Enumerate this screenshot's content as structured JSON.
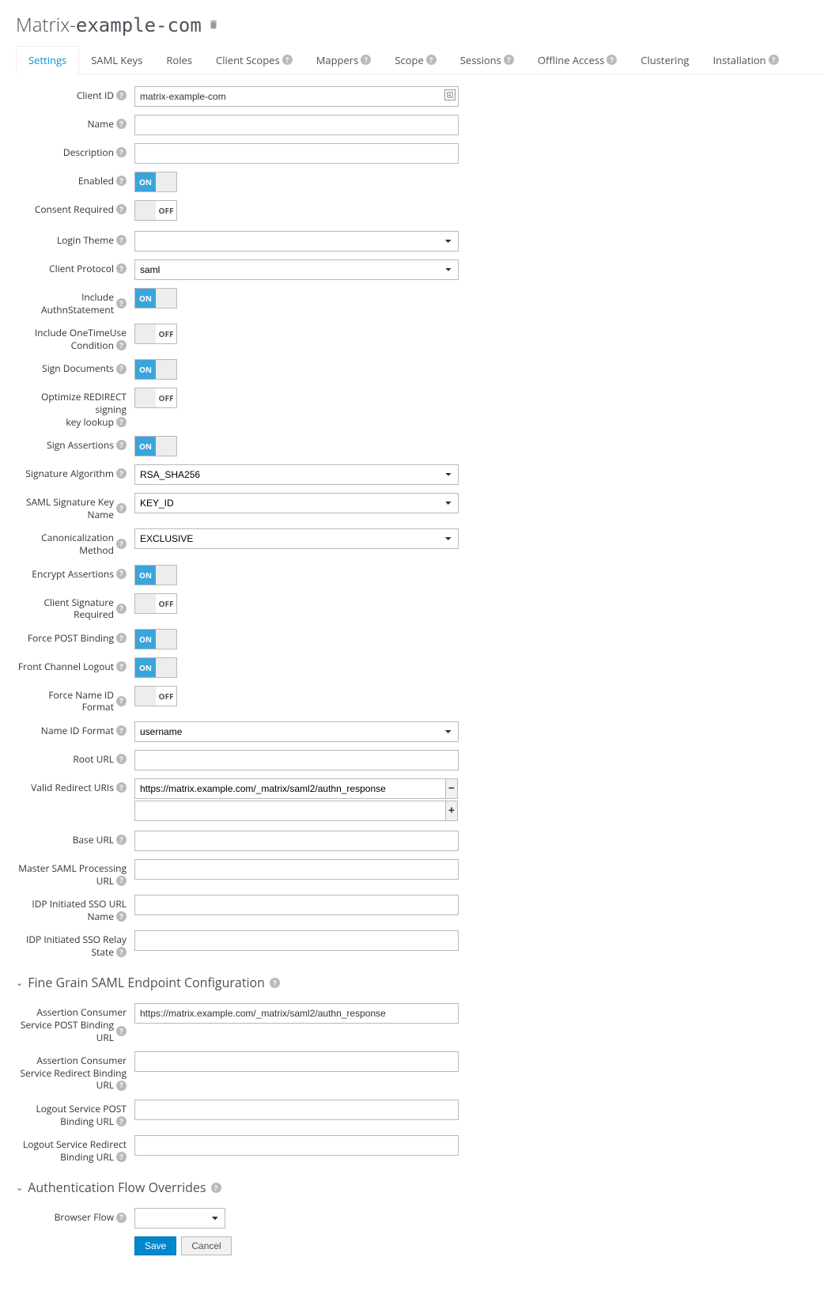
{
  "title": {
    "prefix": "Matrix-",
    "name": "example-com"
  },
  "tabs": [
    {
      "label": "Settings",
      "help": false,
      "active": true
    },
    {
      "label": "SAML Keys",
      "help": false
    },
    {
      "label": "Roles",
      "help": false
    },
    {
      "label": "Client Scopes",
      "help": true
    },
    {
      "label": "Mappers",
      "help": true
    },
    {
      "label": "Scope",
      "help": true
    },
    {
      "label": "Sessions",
      "help": true
    },
    {
      "label": "Offline Access",
      "help": true
    },
    {
      "label": "Clustering",
      "help": false
    },
    {
      "label": "Installation",
      "help": true
    }
  ],
  "fields": {
    "client_id": {
      "label": "Client ID",
      "value": "matrix-example-com"
    },
    "name": {
      "label": "Name",
      "value": ""
    },
    "description": {
      "label": "Description",
      "value": ""
    },
    "enabled": {
      "label": "Enabled",
      "on": true
    },
    "consent_required": {
      "label": "Consent Required",
      "on": false
    },
    "login_theme": {
      "label": "Login Theme",
      "value": ""
    },
    "client_protocol": {
      "label": "Client Protocol",
      "value": "saml"
    },
    "include_authn": {
      "label": "Include AuthnStatement",
      "on": true
    },
    "include_onetime": {
      "label": "Include OneTimeUse Condition",
      "on": false
    },
    "sign_documents": {
      "label": "Sign Documents",
      "on": true
    },
    "optimize_redirect": {
      "label": "Optimize REDIRECT signing key lookup",
      "on": false
    },
    "sign_assertions": {
      "label": "Sign Assertions",
      "on": true
    },
    "signature_algorithm": {
      "label": "Signature Algorithm",
      "value": "RSA_SHA256"
    },
    "saml_sig_key_name": {
      "label": "SAML Signature Key Name",
      "value": "KEY_ID"
    },
    "canon_method": {
      "label": "Canonicalization Method",
      "value": "EXCLUSIVE"
    },
    "encrypt_assertions": {
      "label": "Encrypt Assertions",
      "on": true
    },
    "client_sig_required": {
      "label": "Client Signature Required",
      "on": false
    },
    "force_post_binding": {
      "label": "Force POST Binding",
      "on": true
    },
    "front_channel_logout": {
      "label": "Front Channel Logout",
      "on": true
    },
    "force_name_id": {
      "label": "Force Name ID Format",
      "on": false
    },
    "name_id_format": {
      "label": "Name ID Format",
      "value": "username"
    },
    "root_url": {
      "label": "Root URL",
      "value": ""
    },
    "valid_redirect": {
      "label": "Valid Redirect URIs",
      "value": "https://matrix.example.com/_matrix/saml2/authn_response"
    },
    "base_url": {
      "label": "Base URL",
      "value": ""
    },
    "master_saml_url": {
      "label": "Master SAML Processing URL",
      "value": ""
    },
    "idp_sso_url_name": {
      "label": "IDP Initiated SSO URL Name",
      "value": ""
    },
    "idp_sso_relay": {
      "label": "IDP Initiated SSO Relay State",
      "value": ""
    }
  },
  "section_fine_grain": {
    "title": "Fine Grain SAML Endpoint Configuration",
    "acs_post": {
      "label": "Assertion Consumer Service POST Binding URL",
      "value": "https://matrix.example.com/_matrix/saml2/authn_response"
    },
    "acs_redirect": {
      "label": "Assertion Consumer Service Redirect Binding URL",
      "value": ""
    },
    "logout_post": {
      "label": "Logout Service POST Binding URL",
      "value": ""
    },
    "logout_redirect": {
      "label": "Logout Service Redirect Binding URL",
      "value": ""
    }
  },
  "section_auth_flow": {
    "title": "Authentication Flow Overrides",
    "browser_flow": {
      "label": "Browser Flow",
      "value": ""
    }
  },
  "buttons": {
    "save": "Save",
    "cancel": "Cancel"
  },
  "toggle_labels": {
    "on": "ON",
    "off": "OFF"
  }
}
